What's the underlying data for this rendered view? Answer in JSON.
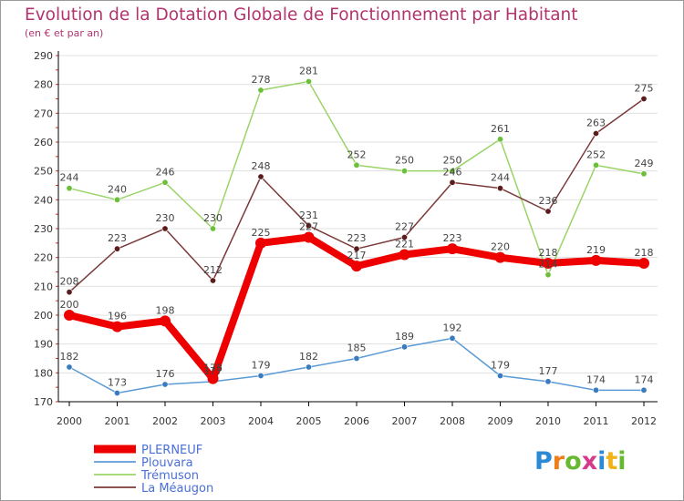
{
  "header": {
    "title": "Evolution de la Dotation Globale de Fonctionnement par Habitant",
    "subtitle": "(en € et par an)"
  },
  "logo": {
    "text": "Proxiti",
    "letters": [
      "P",
      "r",
      "o",
      "x",
      "i",
      "t",
      "i"
    ]
  },
  "chart_data": {
    "type": "line",
    "title": "Evolution de la Dotation Globale de Fonctionnement par Habitant",
    "subtitle": "(en € et par an)",
    "xlabel": "",
    "ylabel": "",
    "ylim": [
      170,
      290
    ],
    "y_ticks": [
      170,
      180,
      190,
      200,
      210,
      220,
      230,
      240,
      250,
      260,
      270,
      280,
      290
    ],
    "grid": "horizontal",
    "legend_position": "bottom-left",
    "categories": [
      "2000",
      "2001",
      "2002",
      "2003",
      "2004",
      "2005",
      "2006",
      "2007",
      "2008",
      "2009",
      "2010",
      "2011",
      "2012"
    ],
    "series": [
      {
        "name": "PLERNEUF",
        "color": "#ee0000",
        "marker": "#ee0000",
        "weight": "bold",
        "values": [
          200,
          196,
          198,
          178,
          225,
          227,
          217,
          221,
          223,
          220,
          218,
          219,
          218
        ],
        "labels": [
          "200",
          "196",
          "198",
          "178",
          "225",
          "227",
          "217",
          "221",
          "223",
          "220",
          "218",
          "219",
          "218"
        ]
      },
      {
        "name": "Plouvara",
        "color": "#5b9bd5",
        "marker": "#3a7bc0",
        "weight": "thin",
        "values": [
          182,
          173,
          176,
          177,
          179,
          182,
          185,
          189,
          192,
          179,
          177,
          174,
          174
        ],
        "labels": [
          "182",
          "173",
          "176",
          "177",
          "179",
          "182",
          "185",
          "189",
          "192",
          "179",
          "177",
          "174",
          "174"
        ]
      },
      {
        "name": "Trémuson",
        "color": "#9ad468",
        "marker": "#6cbf3a",
        "weight": "thin",
        "values": [
          244,
          240,
          246,
          230,
          278,
          281,
          252,
          250,
          250,
          261,
          214,
          252,
          249
        ],
        "labels": [
          "244",
          "240",
          "246",
          "230",
          "278",
          "281",
          "252",
          "250",
          "250",
          "261",
          "214",
          "252",
          "249"
        ]
      },
      {
        "name": "La Méaugon",
        "color": "#7b3a3a",
        "marker": "#5a1c1c",
        "weight": "thin",
        "values": [
          208,
          223,
          230,
          212,
          248,
          231,
          223,
          227,
          246,
          244,
          236,
          263,
          275
        ],
        "labels": [
          "208",
          "223",
          "230",
          "212",
          "248",
          "231",
          "223",
          "227",
          "246",
          "244",
          "236",
          "263",
          "275"
        ]
      }
    ]
  }
}
